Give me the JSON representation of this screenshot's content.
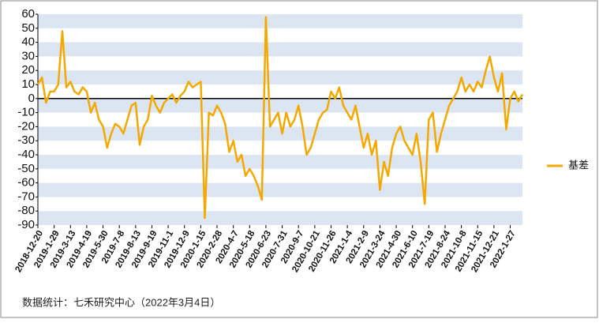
{
  "chart_data": {
    "type": "line",
    "categories": [
      "2018-12-20",
      null,
      null,
      null,
      "2019-1-29",
      null,
      null,
      null,
      "2019-3-13",
      null,
      null,
      null,
      "2019-4-19",
      null,
      null,
      null,
      "2019-5-30",
      null,
      null,
      null,
      "2019-7-8",
      null,
      null,
      null,
      "2019-8-13",
      null,
      null,
      null,
      "2019-9-19",
      null,
      null,
      null,
      "2019-11-1",
      null,
      null,
      null,
      "2019-12-9",
      null,
      null,
      null,
      "2020-1-15",
      null,
      null,
      null,
      "2020-2-28",
      null,
      null,
      null,
      "2020-4-7",
      null,
      null,
      null,
      "2020-5-18",
      null,
      null,
      null,
      "2020-6-23",
      null,
      null,
      null,
      "2020-7-31",
      null,
      null,
      null,
      "2020-9-7",
      null,
      null,
      null,
      "2020-10-21",
      null,
      null,
      null,
      "2020-11-26",
      null,
      null,
      null,
      "2021-1-4",
      null,
      null,
      null,
      "2021-2-9",
      null,
      null,
      null,
      "2021-3-24",
      null,
      null,
      null,
      "2021-4-30",
      null,
      null,
      null,
      "2021-6-10",
      null,
      null,
      null,
      "2021-7-19",
      null,
      null,
      null,
      "2021-8-24",
      null,
      null,
      null,
      "2021-10-8",
      null,
      null,
      null,
      "2021-11-15",
      null,
      null,
      null,
      "2021-12-21",
      null,
      null,
      null,
      "2022-1-27",
      null,
      null,
      null
    ],
    "series": [
      {
        "name": "基差",
        "color": "#f5a800",
        "values": [
          10,
          15,
          -3,
          5,
          5,
          10,
          48,
          8,
          12,
          5,
          3,
          8,
          5,
          -10,
          -3,
          -15,
          -20,
          -35,
          -25,
          -18,
          -20,
          -25,
          -15,
          -5,
          -3,
          -33,
          -20,
          -15,
          2,
          -5,
          -10,
          -3,
          0,
          3,
          -3,
          2,
          5,
          12,
          8,
          10,
          12,
          -85,
          -10,
          -12,
          -5,
          -10,
          -18,
          -38,
          -30,
          -45,
          -40,
          -55,
          -50,
          -55,
          -62,
          -72,
          58,
          -20,
          -15,
          -10,
          -25,
          -10,
          -20,
          -15,
          -5,
          -20,
          -40,
          -35,
          -25,
          -15,
          -10,
          -8,
          5,
          0,
          8,
          -5,
          -10,
          -15,
          -5,
          -20,
          -35,
          -25,
          -40,
          -30,
          -65,
          -45,
          -55,
          -35,
          -25,
          -20,
          -30,
          -35,
          -40,
          -25,
          -45,
          -75,
          -15,
          -10,
          -38,
          -25,
          -15,
          -5,
          0,
          5,
          15,
          5,
          10,
          5,
          12,
          8,
          20,
          30,
          15,
          5,
          18,
          -22,
          0,
          5,
          -2,
          3
        ]
      }
    ],
    "ylim": [
      -90,
      60
    ],
    "yticks": [
      -90,
      -80,
      -70,
      -60,
      -50,
      -40,
      -30,
      -20,
      -10,
      0,
      10,
      20,
      30,
      40,
      50,
      60
    ],
    "grid": true,
    "legend": "right"
  },
  "footer": "数据统计：七禾研究中心（2022年3月4日）"
}
